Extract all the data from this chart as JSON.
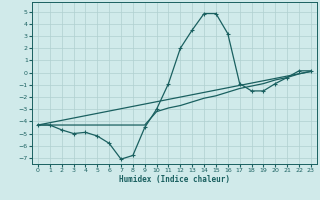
{
  "xlabel": "Humidex (Indice chaleur)",
  "xlim": [
    -0.5,
    23.5
  ],
  "ylim": [
    -7.5,
    5.8
  ],
  "xticks": [
    0,
    1,
    2,
    3,
    4,
    5,
    6,
    7,
    8,
    9,
    10,
    11,
    12,
    13,
    14,
    15,
    16,
    17,
    18,
    19,
    20,
    21,
    22,
    23
  ],
  "yticks": [
    -7,
    -6,
    -5,
    -4,
    -3,
    -2,
    -1,
    0,
    1,
    2,
    3,
    4,
    5
  ],
  "bg_color": "#d0eaea",
  "line_color": "#1a6060",
  "grid_color": "#b0d0d0",
  "series1_x": [
    0,
    1,
    2,
    3,
    4,
    5,
    6,
    7,
    8,
    9,
    10,
    11,
    12,
    13,
    14,
    15,
    16,
    17,
    18,
    19,
    20,
    21,
    22,
    23
  ],
  "series1_y": [
    -4.3,
    -4.3,
    -4.7,
    -5.0,
    -4.9,
    -5.2,
    -5.8,
    -7.1,
    -6.8,
    -4.5,
    -3.0,
    -0.9,
    2.0,
    3.5,
    4.85,
    4.85,
    3.2,
    -0.9,
    -1.5,
    -1.5,
    -0.9,
    -0.4,
    0.15,
    0.15
  ],
  "series2_x": [
    0,
    1,
    2,
    3,
    4,
    5,
    6,
    7,
    8,
    9,
    10,
    11,
    12,
    13,
    14,
    15,
    16,
    17,
    18,
    19,
    20,
    21,
    22,
    23
  ],
  "series2_y": [
    -4.3,
    -4.3,
    -4.3,
    -4.3,
    -4.3,
    -4.3,
    -4.3,
    -4.3,
    -4.3,
    -4.3,
    -3.2,
    -2.9,
    -2.7,
    -2.4,
    -2.1,
    -1.9,
    -1.6,
    -1.3,
    -1.1,
    -0.9,
    -0.6,
    -0.4,
    -0.1,
    0.1
  ],
  "series3_x": [
    0,
    23
  ],
  "series3_y": [
    -4.3,
    0.1
  ],
  "markersize": 2.5,
  "linewidth": 0.9,
  "tick_fontsize": 4.5,
  "xlabel_fontsize": 5.5
}
